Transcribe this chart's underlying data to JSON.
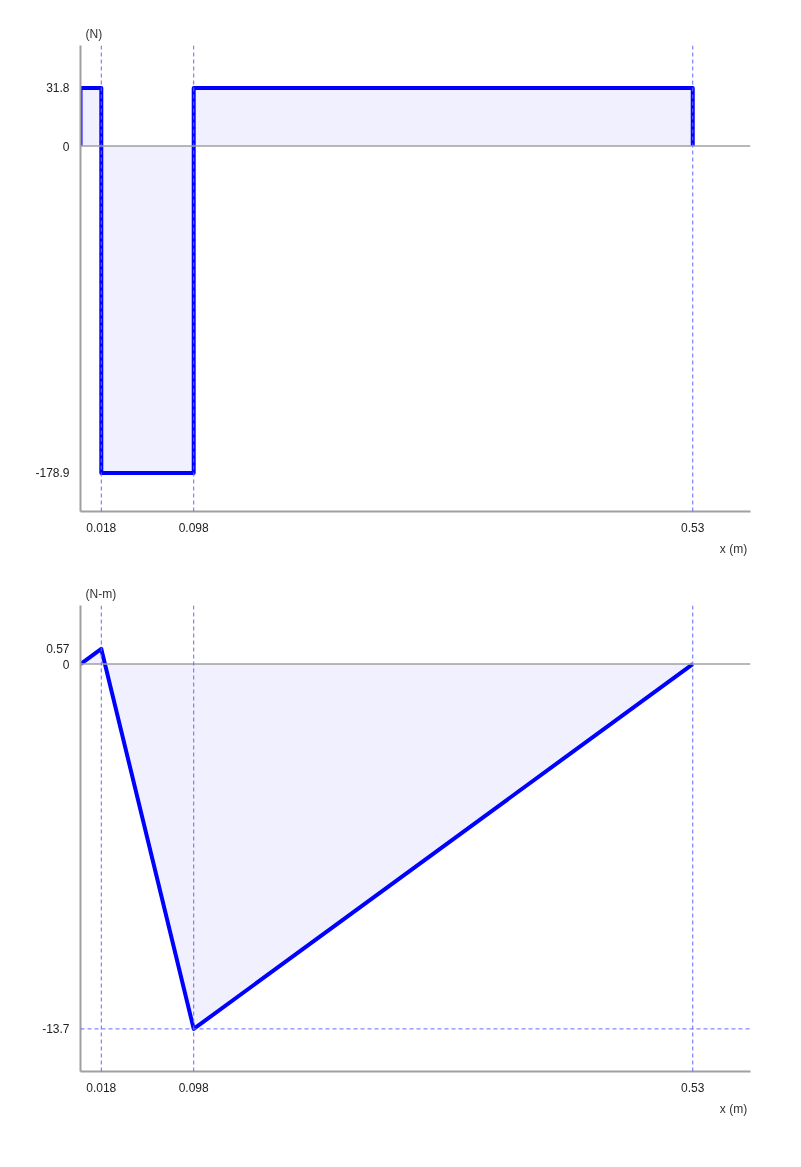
{
  "chart_data": [
    {
      "type": "area",
      "ylabel": "(N)",
      "xlabel": "x  (m)",
      "x": [
        0,
        0,
        0.018,
        0.018,
        0.098,
        0.098,
        0.53,
        0.53
      ],
      "series": [
        {
          "color": "#0000ff",
          "values": [
            0,
            31.8,
            31.8,
            -178.9,
            -178.9,
            31.8,
            31.8,
            0
          ]
        }
      ],
      "xlim": [
        0,
        0.58
      ],
      "ylim": [
        -200,
        55
      ],
      "xticks": [
        0.018,
        0.098,
        0.53
      ],
      "yticks": [
        -178.9,
        0,
        31.8
      ],
      "ref_lines": [
        {
          "axis": "y",
          "value": 0,
          "color": "#a0a0a0",
          "line_style": "solid"
        },
        {
          "axis": "x",
          "value": 0.018,
          "color": "#6666ff",
          "line_style": "dashed"
        },
        {
          "axis": "x",
          "value": 0.098,
          "color": "#6666ff",
          "line_style": "dashed"
        },
        {
          "axis": "x",
          "value": 0.53,
          "color": "#6666ff",
          "line_style": "dashed"
        }
      ]
    },
    {
      "type": "area",
      "ylabel": "(N-m)",
      "xlabel": "x  (m)",
      "x": [
        0,
        0.018,
        0.098,
        0.53
      ],
      "series": [
        {
          "color": "#0000ff",
          "values": [
            0,
            0.57,
            -13.7,
            0
          ]
        }
      ],
      "xlim": [
        0,
        0.58
      ],
      "ylim": [
        -15.3,
        2.2
      ],
      "xticks": [
        0.018,
        0.098,
        0.53
      ],
      "yticks": [
        -13.7,
        0,
        0.57
      ],
      "ref_lines": [
        {
          "axis": "y",
          "value": 0,
          "color": "#a0a0a0",
          "line_style": "solid"
        },
        {
          "axis": "y",
          "value": -13.7,
          "color": "#6666ff",
          "line_style": "dashed"
        },
        {
          "axis": "x",
          "value": 0.018,
          "color": "#6666ff",
          "line_style": "dashed"
        },
        {
          "axis": "x",
          "value": 0.098,
          "color": "#6666ff",
          "line_style": "dashed"
        },
        {
          "axis": "x",
          "value": 0.53,
          "color": "#6666ff",
          "line_style": "dashed"
        }
      ]
    }
  ]
}
